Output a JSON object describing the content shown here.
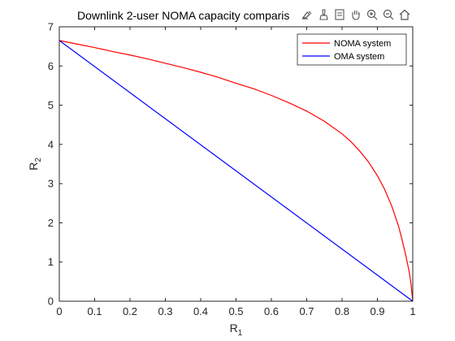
{
  "chart_data": {
    "type": "line",
    "title": "Downlink 2-user NOMA capacity comparis",
    "xlabel": "R",
    "xlabel_sub": "1",
    "ylabel": "R",
    "ylabel_sub": "2",
    "xlim": [
      0,
      1
    ],
    "ylim": [
      0,
      7
    ],
    "xticks": [
      0,
      0.1,
      0.2,
      0.3,
      0.4,
      0.5,
      0.6,
      0.7,
      0.8,
      0.9,
      1
    ],
    "xtick_labels": [
      "0",
      "0.1",
      "0.2",
      "0.3",
      "0.4",
      "0.5",
      "0.6",
      "0.7",
      "0.8",
      "0.9",
      "1"
    ],
    "yticks": [
      0,
      1,
      2,
      3,
      4,
      5,
      6,
      7
    ],
    "ytick_labels": [
      "0",
      "1",
      "2",
      "3",
      "4",
      "5",
      "6",
      "7"
    ],
    "grid": false,
    "legend_position": "top-right",
    "series": [
      {
        "name": "NOMA system",
        "color": "#ff0000",
        "x": [
          0,
          0.05,
          0.1,
          0.15,
          0.2,
          0.25,
          0.3,
          0.35,
          0.4,
          0.45,
          0.5,
          0.55,
          0.6,
          0.65,
          0.7,
          0.75,
          0.8,
          0.825,
          0.85,
          0.875,
          0.9,
          0.92,
          0.94,
          0.96,
          0.97,
          0.98,
          0.99,
          0.995,
          1
        ],
        "y": [
          6.65,
          6.56,
          6.47,
          6.37,
          6.28,
          6.18,
          6.07,
          5.96,
          5.84,
          5.71,
          5.56,
          5.42,
          5.25,
          5.06,
          4.85,
          4.59,
          4.27,
          4.07,
          3.83,
          3.55,
          3.2,
          2.86,
          2.44,
          1.91,
          1.56,
          1.18,
          0.75,
          0.45,
          0
        ]
      },
      {
        "name": "OMA system",
        "color": "#0000ff",
        "x": [
          0,
          1
        ],
        "y": [
          6.65,
          0
        ]
      }
    ]
  },
  "toolbar": {
    "icons": [
      "export-icon",
      "brush-icon",
      "datatip-icon",
      "pan-icon",
      "zoom-in-icon",
      "zoom-out-icon",
      "home-icon"
    ]
  }
}
